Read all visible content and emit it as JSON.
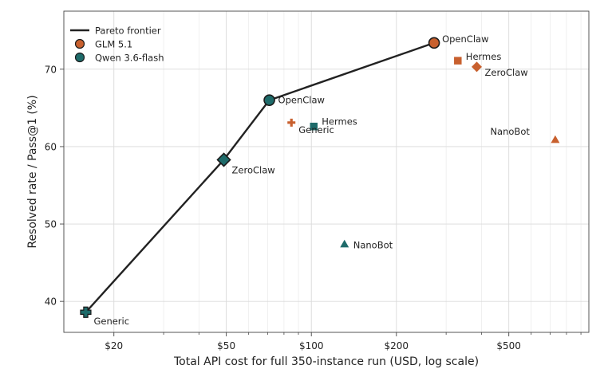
{
  "chart_data": {
    "type": "scatter",
    "xlabel": "Total API cost for full 350-instance run (USD, log scale)",
    "ylabel": "Resolved rate / Pass@1 (%)",
    "x_scale": "log",
    "xlim": [
      13.3,
      960
    ],
    "ylim": [
      36,
      77.5
    ],
    "x_ticks": [
      {
        "value": 20,
        "label": "$20"
      },
      {
        "value": 50,
        "label": "$50"
      },
      {
        "value": 100,
        "label": "$100"
      },
      {
        "value": 200,
        "label": "$200"
      },
      {
        "value": 500,
        "label": "$500"
      }
    ],
    "y_ticks": [
      {
        "value": 40,
        "label": "40"
      },
      {
        "value": 50,
        "label": "50"
      },
      {
        "value": 60,
        "label": "60"
      },
      {
        "value": 70,
        "label": "70"
      }
    ],
    "grid": true,
    "legend_position": "top-left",
    "legend": [
      {
        "label": "Pareto frontier",
        "kind": "line",
        "color": "#222222"
      },
      {
        "label": "GLM 5.1",
        "kind": "circle",
        "color": "#C8602E"
      },
      {
        "label": "Qwen 3.6-flash",
        "kind": "circle",
        "color": "#1E6B6A"
      }
    ],
    "series": [
      {
        "name": "GLM 5.1",
        "color": "#C8602E",
        "points": [
          {
            "label": "OpenClaw",
            "x": 272,
            "y": 73.4,
            "marker": "circle",
            "frontier": true
          },
          {
            "label": "Hermes",
            "x": 330,
            "y": 71.1,
            "marker": "square",
            "frontier": false
          },
          {
            "label": "ZeroClaw",
            "x": 385,
            "y": 70.3,
            "marker": "diamond",
            "frontier": false
          },
          {
            "label": "Generic",
            "x": 85,
            "y": 63.1,
            "marker": "plus",
            "frontier": false
          },
          {
            "label": "NanoBot",
            "x": 730,
            "y": 60.9,
            "marker": "triangle",
            "frontier": false
          }
        ]
      },
      {
        "name": "Qwen 3.6-flash",
        "color": "#1E6B6A",
        "points": [
          {
            "label": "OpenClaw",
            "x": 71,
            "y": 66.0,
            "marker": "circle",
            "frontier": true
          },
          {
            "label": "Hermes",
            "x": 102,
            "y": 62.6,
            "marker": "square",
            "frontier": false
          },
          {
            "label": "ZeroClaw",
            "x": 49,
            "y": 58.3,
            "marker": "diamond",
            "frontier": true
          },
          {
            "label": "NanoBot",
            "x": 131,
            "y": 47.4,
            "marker": "triangle",
            "frontier": false
          },
          {
            "label": "Generic",
            "x": 15.9,
            "y": 38.6,
            "marker": "plus",
            "frontier": true
          }
        ]
      }
    ],
    "pareto_frontier": [
      {
        "x": 15.9,
        "y": 38.6
      },
      {
        "x": 49,
        "y": 58.3
      },
      {
        "x": 71,
        "y": 66.0
      },
      {
        "x": 272,
        "y": 73.4
      }
    ]
  }
}
